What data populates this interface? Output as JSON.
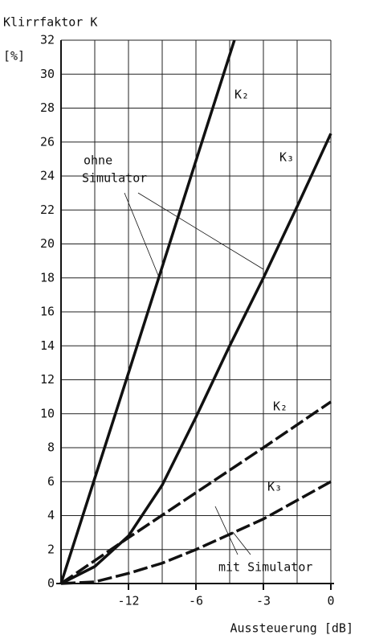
{
  "chart_data": {
    "type": "line",
    "title": "Klirrfaktor K",
    "y_label": "[%]",
    "x_label": "Aussteuerung [dB]",
    "xlim": [
      -18,
      0
    ],
    "xticks": [
      -12,
      -6,
      -3,
      0
    ],
    "ylim": [
      0,
      32
    ],
    "yticks": [
      0,
      2,
      4,
      6,
      8,
      10,
      12,
      14,
      16,
      18,
      20,
      22,
      24,
      26,
      28,
      30,
      32
    ],
    "grid": true,
    "series": [
      {
        "name": "K₂",
        "color": "#111111",
        "style": "solid",
        "x": [
          -18,
          -12,
          -6,
          -4.29
        ],
        "values": [
          0,
          12.4,
          24.9,
          32
        ]
      },
      {
        "name": "K₃",
        "color": "#111111",
        "style": "solid",
        "x": [
          -18,
          -15,
          -12,
          -9,
          -6,
          -4.5,
          -3,
          -1.5,
          0
        ],
        "values": [
          0,
          1.0,
          2.8,
          5.8,
          9.8,
          14,
          18,
          22.2,
          26.5
        ]
      },
      {
        "name": "K₂",
        "color": "#111111",
        "style": "dashed",
        "x": [
          -18,
          -12,
          -6,
          -3,
          0
        ],
        "values": [
          0,
          2.7,
          5.35,
          8.0,
          10.7
        ]
      },
      {
        "name": "K₃",
        "color": "#111111",
        "style": "dashed",
        "x": [
          -18,
          -15,
          -12,
          -9,
          -6,
          -3,
          0
        ],
        "values": [
          0,
          0.1,
          0.6,
          1.2,
          2.0,
          3.8,
          6.0
        ]
      }
    ],
    "annotations": [
      {
        "lines": [
          "ohne",
          "Simulator"
        ]
      },
      {
        "lines": [
          "mit Simulator"
        ]
      }
    ]
  }
}
